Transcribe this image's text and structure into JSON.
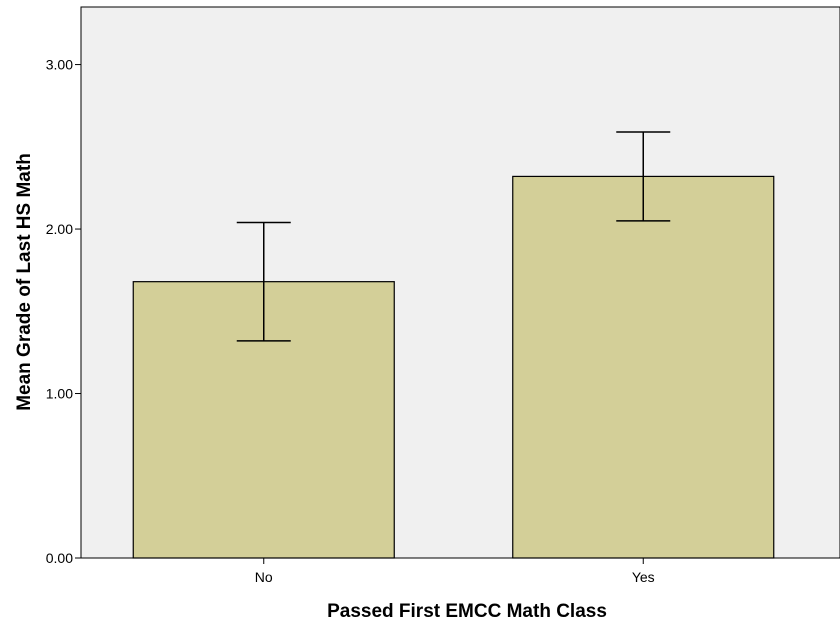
{
  "chart_data": {
    "type": "bar",
    "categories": [
      "No",
      "Yes"
    ],
    "values": [
      1.68,
      2.32
    ],
    "error_bars": [
      {
        "low": 1.32,
        "high": 2.04
      },
      {
        "low": 2.05,
        "high": 2.59
      }
    ],
    "xlabel": "Passed First EMCC Math Class",
    "ylabel": "Mean Grade of Last HS Math",
    "ylim": [
      0,
      3.35
    ],
    "yticks": [
      "0.00",
      "1.00",
      "2.00",
      "3.00"
    ],
    "ytick_values": [
      0,
      1,
      2,
      3
    ],
    "grid": false,
    "legend": "none"
  },
  "colors": {
    "plot_background": "#f0f0f0",
    "bar_fill": "#d3cf98",
    "bar_stroke": "#000000",
    "axis": "#000000"
  }
}
